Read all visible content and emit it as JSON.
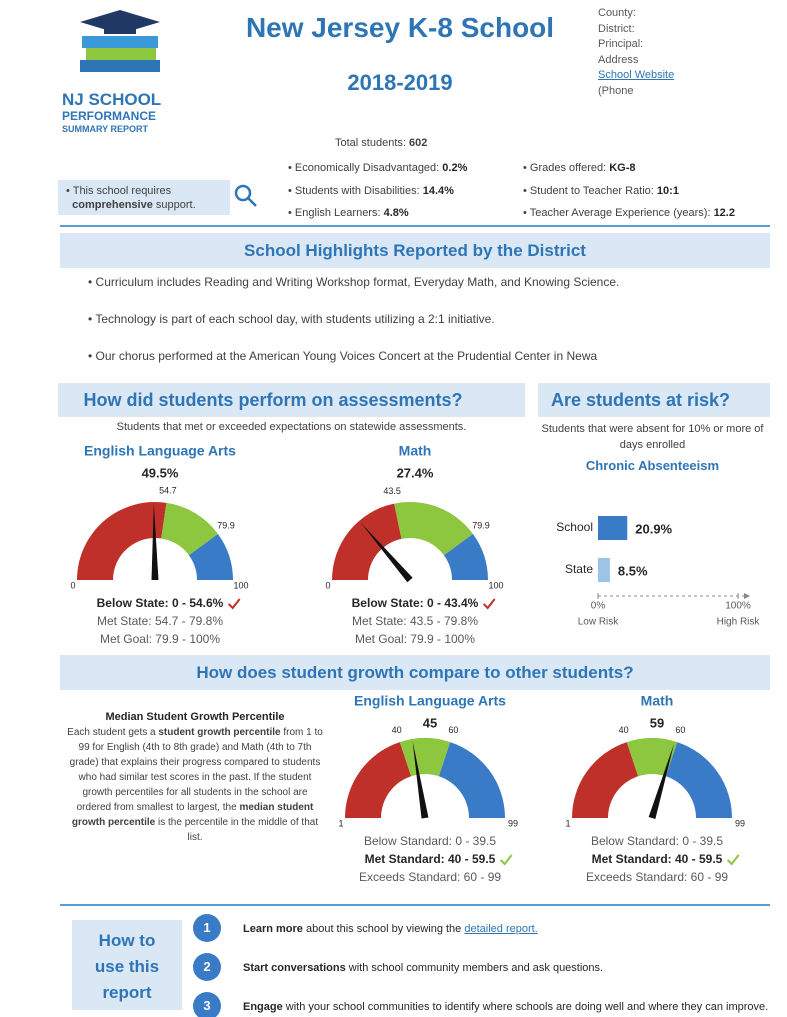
{
  "header": {
    "logo": [
      "NJ SCHOOL",
      "PERFORMANCE",
      "SUMMARY REPORT"
    ],
    "title": "New Jersey K-8 School",
    "year": "2018-2019",
    "info": [
      "County:",
      "District:",
      "Principal:",
      "Address"
    ],
    "website": "School Website",
    "phone": "(Phone"
  },
  "stats": {
    "total_label": "Total students:",
    "total_value": "602",
    "left": [
      {
        "label": "Economically Disadvantaged:",
        "value": "0.2%"
      },
      {
        "label": "Students with Disabilities:",
        "value": "14.4%"
      },
      {
        "label": "English Learners:",
        "value": "4.8%"
      }
    ],
    "right": [
      {
        "label": "Grades offered:",
        "value": "KG-8"
      },
      {
        "label": "Student to Teacher Ratio:",
        "value": "10:1"
      },
      {
        "label": "Teacher Average Experience (years):",
        "value": "12.2"
      }
    ]
  },
  "support": {
    "before": "This school requires",
    "bold": "comprehensive",
    "after": "support."
  },
  "highlights": {
    "title": "School Highlights Reported by the District",
    "items": [
      "Curriculum includes Reading and Writing Workshop format, Everyday Math, and Knowing Science.",
      "Technology is part of each school day, with students utilizing a 2:1 initiative.",
      "Our chorus performed at the American Young Voices Concert at the Prudential Center in Newa"
    ]
  },
  "assessments": {
    "title": "How did students perform on assessments?",
    "subtitle": "Students that met or exceeded expectations on statewide assessments.",
    "gauges": [
      {
        "title": "English Language Arts",
        "value": 49.5,
        "value_label": "49.5%",
        "min": 0,
        "max": 100,
        "thresholds": [
          54.7,
          79.9
        ],
        "legend": [
          {
            "text": "Below State: 0 - 54.6%",
            "bold": true,
            "check": true
          },
          {
            "text": "Met State: 54.7 - 79.8%"
          },
          {
            "text": "Met Goal: 79.9 - 100%"
          }
        ]
      },
      {
        "title": "Math",
        "value": 27.4,
        "value_label": "27.4%",
        "min": 0,
        "max": 100,
        "thresholds": [
          43.5,
          79.9
        ],
        "legend": [
          {
            "text": "Below State: 0 - 43.4%",
            "bold": true,
            "check": true
          },
          {
            "text": "Met State: 43.5 - 79.8%"
          },
          {
            "text": "Met Goal: 79.9 - 100%"
          }
        ]
      }
    ],
    "check_color": "#c0302b"
  },
  "risk": {
    "title": "Are students at risk?",
    "note": "Students that were absent for 10% or more of days enrolled",
    "chart_title": "Chronic Absenteeism",
    "categories": [
      "School",
      "State"
    ],
    "values": [
      20.9,
      8.5
    ],
    "value_labels": [
      "20.9%",
      "8.5%"
    ],
    "colors": [
      "#3a7bc8",
      "#9dc3e6"
    ],
    "xlim": [
      0,
      100
    ],
    "xticks": [
      {
        "value": 0,
        "label": "0%"
      },
      {
        "value": 100,
        "label": "100%"
      }
    ],
    "axis_labels": [
      "Low Risk",
      "High Risk"
    ]
  },
  "growth": {
    "title": "How does student growth compare to other students?",
    "desc_title": "Median Student Growth Percentile",
    "desc": [
      {
        "text": "Each student gets a "
      },
      {
        "text": "student growth percentile",
        "bold": true
      },
      {
        "text": " from 1 to 99 for English (4th to 8th grade) and Math (4th to 7th grade) that explains their progress compared to students who had similar test scores in the past. If the student growth percentiles for all students in the school are ordered from smallest to largest, the "
      },
      {
        "text": "median student growth percentile",
        "bold": true
      },
      {
        "text": " is the percentile in the middle of that list."
      }
    ],
    "gauges": [
      {
        "title": "English Language Arts",
        "value": 45,
        "min": 1,
        "max": 99,
        "thresholds": [
          40,
          60
        ],
        "legend": [
          {
            "text": "Below Standard: 0 - 39.5"
          },
          {
            "text": "Met Standard: 40 - 59.5",
            "bold": true,
            "check": true
          },
          {
            "text": "Exceeds Standard: 60 - 99"
          }
        ]
      },
      {
        "title": "Math",
        "value": 59,
        "min": 1,
        "max": 99,
        "thresholds": [
          40,
          60
        ],
        "legend": [
          {
            "text": "Below Standard: 0 - 39.5"
          },
          {
            "text": "Met Standard: 40 - 59.5",
            "bold": true,
            "check": true
          },
          {
            "text": "Exceeds Standard: 60 - 99"
          }
        ]
      }
    ],
    "check_color": "#8dc63f"
  },
  "how_to": {
    "title": "How to use this report",
    "steps": [
      {
        "number": "1",
        "bold": "Learn more",
        "text": " about this school by viewing the ",
        "link": "detailed report."
      },
      {
        "number": "2",
        "bold": "Start conversations",
        "text": " with school community members and ask questions."
      },
      {
        "number": "3",
        "bold": "Engage",
        "text": " with your school communities to identify where schools are doing well and where they can improve."
      }
    ]
  }
}
